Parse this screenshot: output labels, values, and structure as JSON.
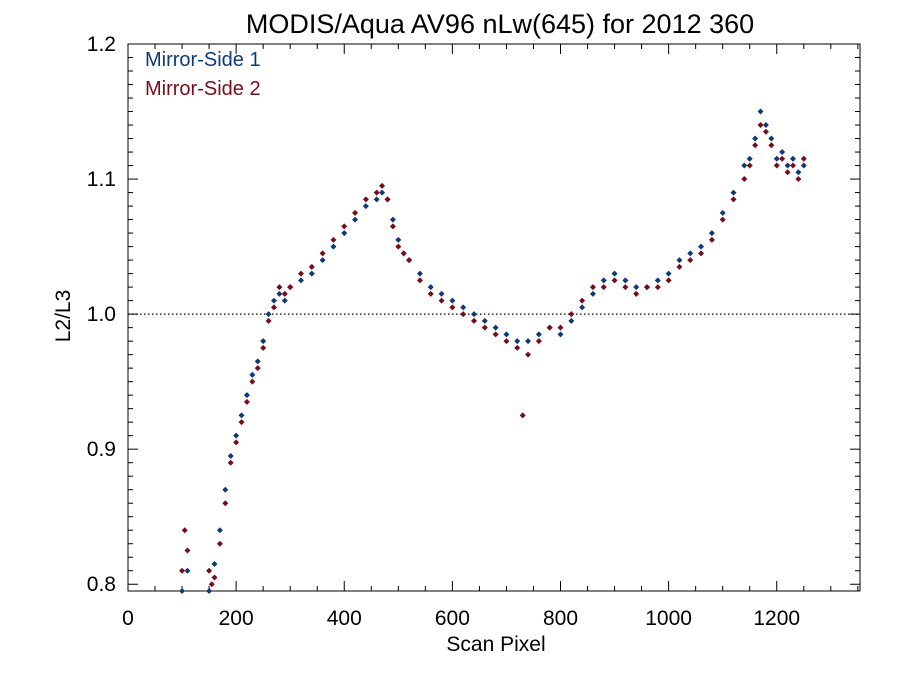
{
  "chart_data": {
    "type": "scatter",
    "title": "MODIS/Aqua AV96 nLw(645) for 2012 360",
    "xlabel": "Scan Pixel",
    "ylabel": "L2/L3",
    "xlim": [
      0,
      1354
    ],
    "ylim": [
      0.795,
      1.2
    ],
    "x_ticks": [
      0,
      200,
      400,
      600,
      800,
      1000,
      1200
    ],
    "x_tick_labels": [
      "0",
      "200",
      "400",
      "600",
      "800",
      "1000",
      "1200"
    ],
    "y_ticks": [
      0.8,
      0.9,
      1.0,
      1.1,
      1.2
    ],
    "y_tick_labels": [
      "0.8",
      "0.9",
      "1.0",
      "1.1",
      "1.2"
    ],
    "reference_line": {
      "y": 1.0,
      "style": "dotted"
    },
    "grid": false,
    "legend_position": "top-left",
    "series": [
      {
        "name": "Mirror-Side 1",
        "color": "#0b3a7d",
        "marker": "diamond",
        "points": [
          [
            100,
            0.795
          ],
          [
            110,
            0.81
          ],
          [
            150,
            0.795
          ],
          [
            160,
            0.815
          ],
          [
            170,
            0.84
          ],
          [
            180,
            0.87
          ],
          [
            190,
            0.895
          ],
          [
            200,
            0.91
          ],
          [
            210,
            0.925
          ],
          [
            220,
            0.94
          ],
          [
            230,
            0.955
          ],
          [
            240,
            0.965
          ],
          [
            250,
            0.98
          ],
          [
            260,
            1.0
          ],
          [
            270,
            1.01
          ],
          [
            280,
            1.015
          ],
          [
            290,
            1.01
          ],
          [
            300,
            1.02
          ],
          [
            320,
            1.025
          ],
          [
            340,
            1.03
          ],
          [
            360,
            1.04
          ],
          [
            380,
            1.05
          ],
          [
            400,
            1.06
          ],
          [
            420,
            1.07
          ],
          [
            440,
            1.08
          ],
          [
            460,
            1.085
          ],
          [
            470,
            1.09
          ],
          [
            480,
            1.085
          ],
          [
            490,
            1.07
          ],
          [
            500,
            1.055
          ],
          [
            510,
            1.045
          ],
          [
            520,
            1.04
          ],
          [
            540,
            1.03
          ],
          [
            560,
            1.02
          ],
          [
            580,
            1.015
          ],
          [
            600,
            1.01
          ],
          [
            620,
            1.005
          ],
          [
            640,
            1.0
          ],
          [
            660,
            0.995
          ],
          [
            680,
            0.99
          ],
          [
            700,
            0.985
          ],
          [
            720,
            0.98
          ],
          [
            740,
            0.98
          ],
          [
            760,
            0.985
          ],
          [
            780,
            0.99
          ],
          [
            800,
            0.985
          ],
          [
            820,
            0.995
          ],
          [
            840,
            1.005
          ],
          [
            860,
            1.015
          ],
          [
            880,
            1.025
          ],
          [
            900,
            1.03
          ],
          [
            920,
            1.025
          ],
          [
            940,
            1.02
          ],
          [
            960,
            1.02
          ],
          [
            980,
            1.025
          ],
          [
            1000,
            1.03
          ],
          [
            1020,
            1.04
          ],
          [
            1040,
            1.045
          ],
          [
            1060,
            1.05
          ],
          [
            1080,
            1.06
          ],
          [
            1100,
            1.075
          ],
          [
            1120,
            1.09
          ],
          [
            1140,
            1.11
          ],
          [
            1150,
            1.115
          ],
          [
            1160,
            1.13
          ],
          [
            1170,
            1.15
          ],
          [
            1180,
            1.14
          ],
          [
            1190,
            1.13
          ],
          [
            1200,
            1.115
          ],
          [
            1210,
            1.12
          ],
          [
            1220,
            1.11
          ],
          [
            1230,
            1.115
          ],
          [
            1240,
            1.105
          ],
          [
            1250,
            1.11
          ]
        ]
      },
      {
        "name": "Mirror-Side 2",
        "color": "#7a0c17",
        "marker": "diamond",
        "points": [
          [
            100,
            0.81
          ],
          [
            105,
            0.84
          ],
          [
            110,
            0.825
          ],
          [
            150,
            0.81
          ],
          [
            155,
            0.8
          ],
          [
            160,
            0.805
          ],
          [
            170,
            0.83
          ],
          [
            180,
            0.86
          ],
          [
            190,
            0.89
          ],
          [
            200,
            0.905
          ],
          [
            210,
            0.92
          ],
          [
            220,
            0.935
          ],
          [
            230,
            0.95
          ],
          [
            240,
            0.96
          ],
          [
            250,
            0.975
          ],
          [
            260,
            0.995
          ],
          [
            270,
            1.005
          ],
          [
            280,
            1.02
          ],
          [
            290,
            1.015
          ],
          [
            300,
            1.02
          ],
          [
            320,
            1.03
          ],
          [
            340,
            1.035
          ],
          [
            360,
            1.045
          ],
          [
            380,
            1.055
          ],
          [
            400,
            1.065
          ],
          [
            420,
            1.075
          ],
          [
            440,
            1.085
          ],
          [
            460,
            1.09
          ],
          [
            470,
            1.095
          ],
          [
            480,
            1.085
          ],
          [
            490,
            1.065
          ],
          [
            500,
            1.05
          ],
          [
            510,
            1.045
          ],
          [
            520,
            1.04
          ],
          [
            540,
            1.025
          ],
          [
            560,
            1.015
          ],
          [
            580,
            1.01
          ],
          [
            600,
            1.005
          ],
          [
            620,
            1.0
          ],
          [
            640,
            0.995
          ],
          [
            660,
            0.99
          ],
          [
            680,
            0.985
          ],
          [
            700,
            0.98
          ],
          [
            720,
            0.975
          ],
          [
            740,
            0.97
          ],
          [
            760,
            0.98
          ],
          [
            780,
            0.99
          ],
          [
            800,
            0.99
          ],
          [
            820,
            1.0
          ],
          [
            840,
            1.01
          ],
          [
            860,
            1.02
          ],
          [
            880,
            1.02
          ],
          [
            900,
            1.025
          ],
          [
            920,
            1.02
          ],
          [
            940,
            1.015
          ],
          [
            960,
            1.02
          ],
          [
            980,
            1.02
          ],
          [
            1000,
            1.025
          ],
          [
            1020,
            1.035
          ],
          [
            1040,
            1.04
          ],
          [
            1060,
            1.045
          ],
          [
            1080,
            1.055
          ],
          [
            1100,
            1.07
          ],
          [
            1120,
            1.085
          ],
          [
            1140,
            1.1
          ],
          [
            1150,
            1.11
          ],
          [
            1160,
            1.125
          ],
          [
            1170,
            1.14
          ],
          [
            1180,
            1.135
          ],
          [
            1190,
            1.125
          ],
          [
            1200,
            1.11
          ],
          [
            1210,
            1.115
          ],
          [
            1220,
            1.105
          ],
          [
            1230,
            1.11
          ],
          [
            1240,
            1.1
          ],
          [
            1250,
            1.115
          ],
          [
            730,
            0.925
          ]
        ]
      }
    ]
  }
}
